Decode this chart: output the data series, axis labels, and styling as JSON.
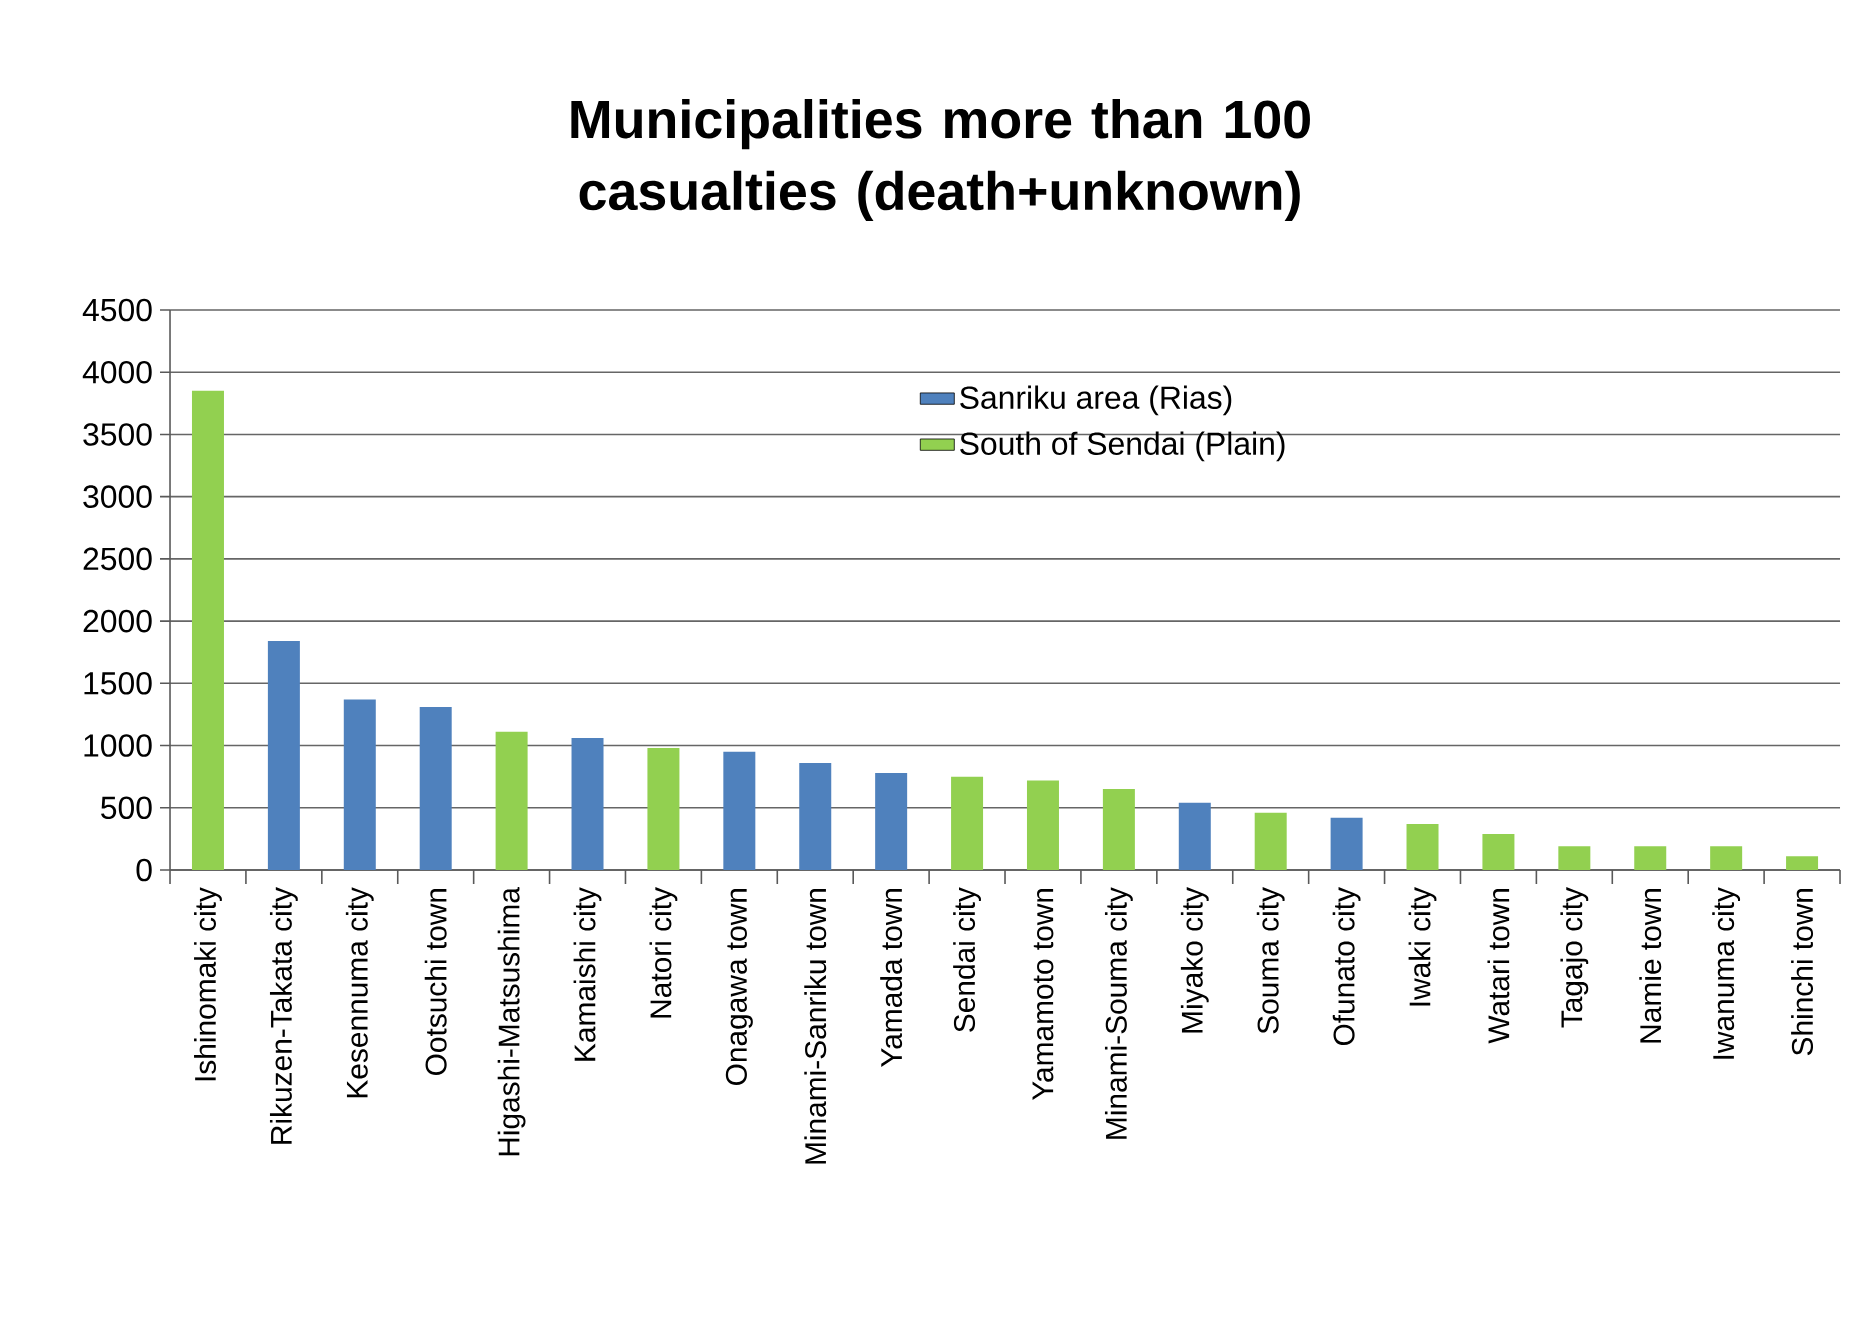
{
  "chart_data": {
    "type": "bar",
    "title": "Municipalities more than 100 casualties (death+unknown)",
    "categories": [
      "Ishinomaki city",
      "Rikuzen-Takata city",
      "Kesennuma city",
      "Ootsuchi town",
      "Higashi-Matsushima",
      "Kamaishi city",
      "Natori city",
      "Onagawa town",
      "Minami-Sanriku town",
      "Yamada town",
      "Sendai city",
      "Yamamoto town",
      "Minami-Souma city",
      "Miyako city",
      "Souma city",
      "Ofunato city",
      "Iwaki city",
      "Watari town",
      "Tagajo city",
      "Namie town",
      "Iwanuma city",
      "Shinchi town"
    ],
    "series": [
      {
        "name": "Sanriku area (Rias)",
        "color": "#4f81bd",
        "values": [
          null,
          1840,
          1370,
          1310,
          null,
          1060,
          null,
          950,
          860,
          780,
          null,
          null,
          null,
          540,
          null,
          420,
          null,
          null,
          null,
          null,
          null,
          null
        ]
      },
      {
        "name": "South of Sendai (Plain)",
        "color": "#92d050",
        "values": [
          3850,
          null,
          null,
          null,
          1110,
          null,
          980,
          null,
          null,
          null,
          750,
          720,
          650,
          null,
          460,
          null,
          370,
          290,
          190,
          190,
          190,
          110
        ]
      }
    ],
    "ylim": [
      0,
      4500
    ],
    "yticks": [
      0,
      500,
      1000,
      1500,
      2000,
      2500,
      3000,
      3500,
      4000,
      4500
    ],
    "grid": "y",
    "legend": "top"
  }
}
